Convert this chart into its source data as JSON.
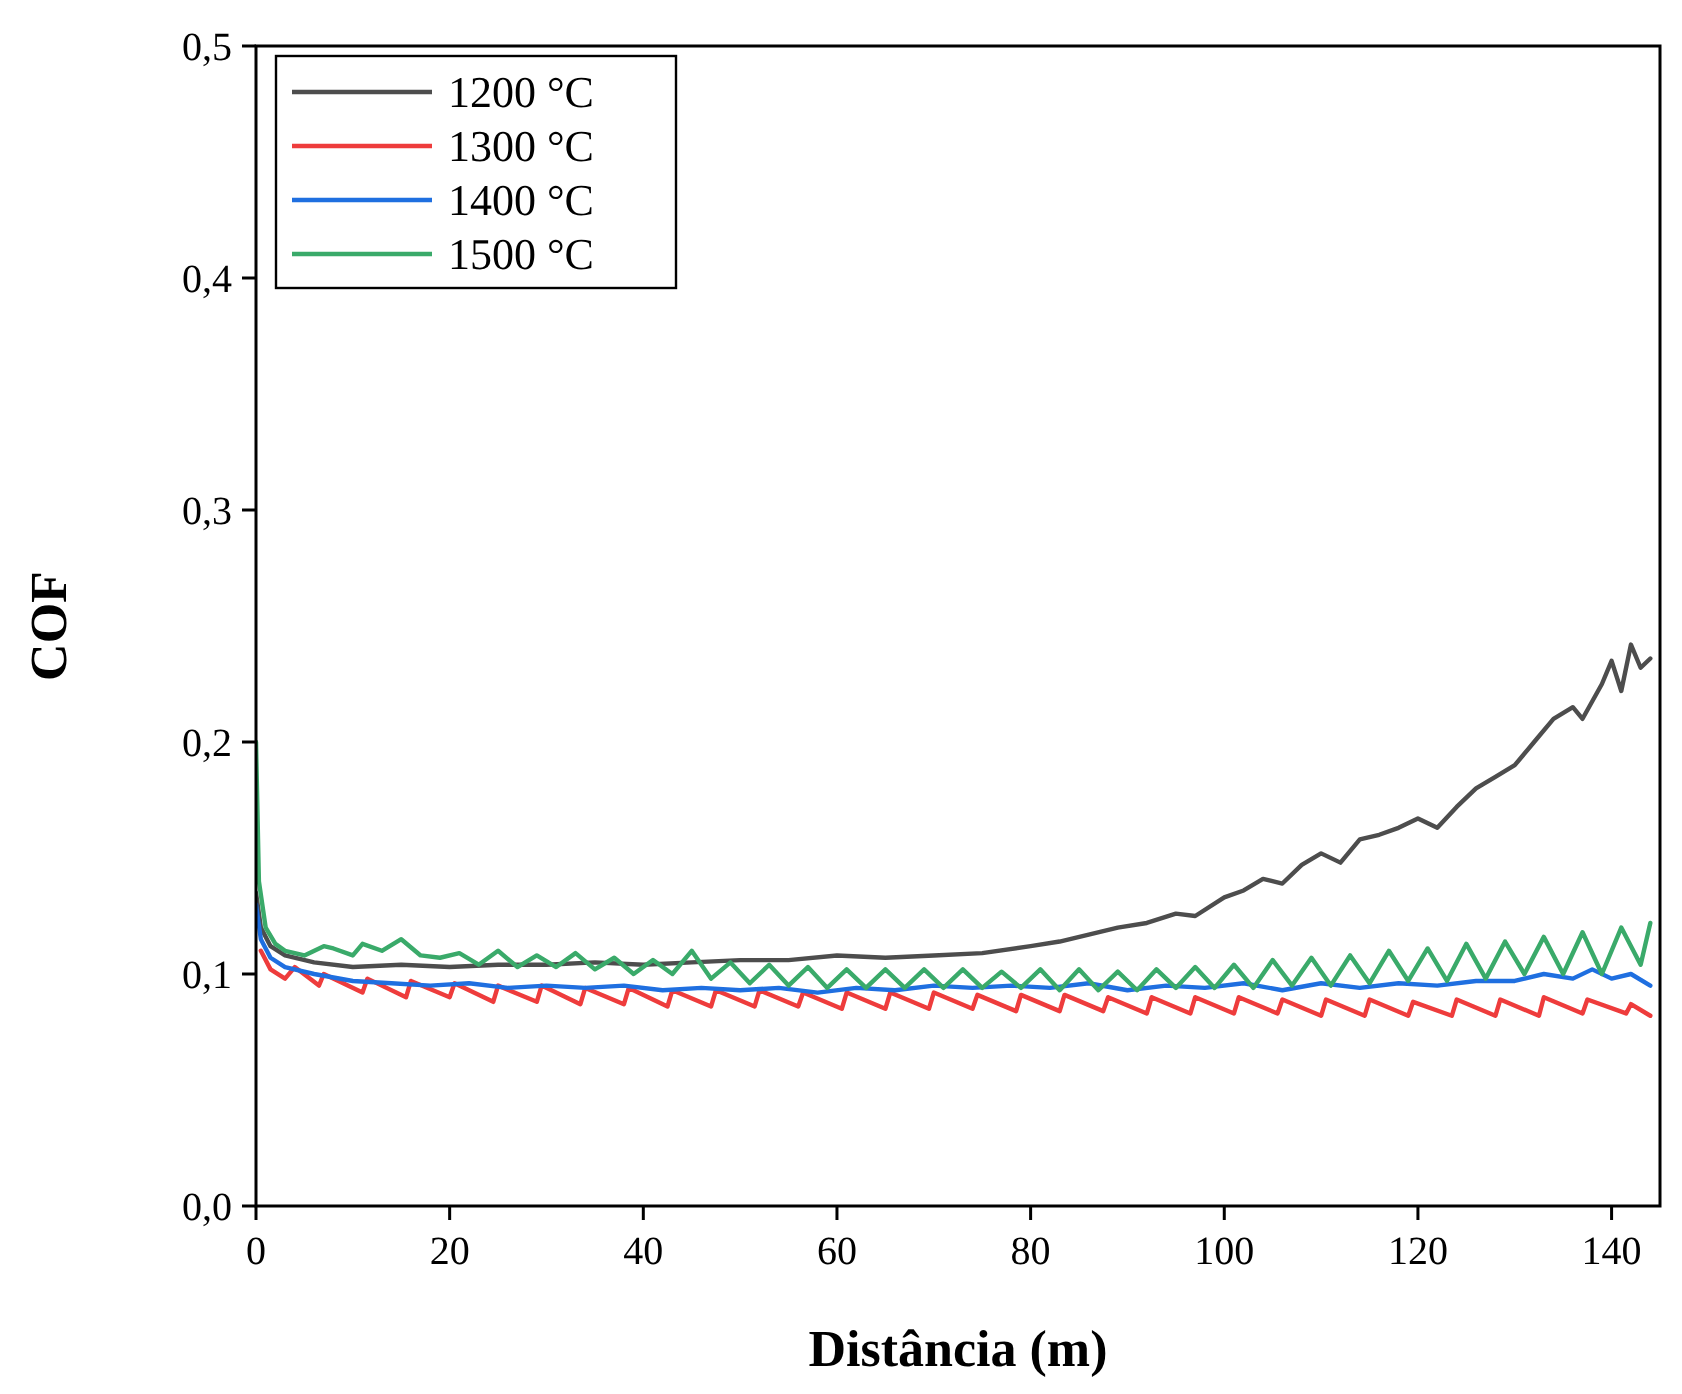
{
  "chart_data": {
    "type": "line",
    "xlabel": "Distância (m)",
    "ylabel": "COF",
    "xlim": [
      0,
      145
    ],
    "ylim": [
      0,
      0.5
    ],
    "xticks": [
      0,
      20,
      40,
      60,
      80,
      100,
      120,
      140
    ],
    "yticks": [
      {
        "value": 0,
        "label": "0,0"
      },
      {
        "value": 0.1,
        "label": "0,1"
      },
      {
        "value": 0.2,
        "label": "0,2"
      },
      {
        "value": 0.3,
        "label": "0,3"
      },
      {
        "value": 0.4,
        "label": "0,4"
      },
      {
        "value": 0.5,
        "label": "0,5"
      }
    ],
    "grid": false,
    "legend": "top left",
    "marker": "none",
    "line_style": "solid",
    "series": [
      {
        "name": "1200 °C",
        "color": "#4d4d4d",
        "x": [
          0,
          0.5,
          1.5,
          3,
          6,
          10,
          15,
          20,
          25,
          30,
          35,
          40,
          45,
          50,
          55,
          60,
          65,
          70,
          75,
          80,
          83,
          86,
          89,
          92,
          95,
          97,
          100,
          102,
          104,
          106,
          108,
          110,
          112,
          114,
          116,
          118,
          120,
          122,
          124,
          126,
          128,
          130,
          132,
          134,
          136,
          137,
          139,
          140,
          141,
          142,
          143,
          144
        ],
        "values": [
          0.135,
          0.12,
          0.112,
          0.108,
          0.105,
          0.103,
          0.104,
          0.103,
          0.104,
          0.104,
          0.105,
          0.104,
          0.105,
          0.106,
          0.106,
          0.108,
          0.107,
          0.108,
          0.109,
          0.112,
          0.114,
          0.117,
          0.12,
          0.122,
          0.126,
          0.125,
          0.133,
          0.136,
          0.141,
          0.139,
          0.147,
          0.152,
          0.148,
          0.158,
          0.16,
          0.163,
          0.167,
          0.163,
          0.172,
          0.18,
          0.185,
          0.19,
          0.2,
          0.21,
          0.215,
          0.21,
          0.225,
          0.235,
          0.222,
          0.242,
          0.232,
          0.236
        ]
      },
      {
        "name": "1300 °C",
        "color": "#ee3c3c",
        "x": [
          0.5,
          1.5,
          3,
          4,
          6.5,
          7,
          11,
          11.5,
          15.5,
          16,
          20,
          20.5,
          24.5,
          25,
          29,
          29.5,
          33.5,
          34,
          38,
          38.5,
          42.5,
          43,
          47,
          47.5,
          51.5,
          52,
          56,
          56.5,
          60.5,
          61,
          65,
          65.5,
          69.5,
          70,
          74,
          74.5,
          78.5,
          79,
          83,
          83.5,
          87.5,
          88,
          92,
          92.5,
          96.5,
          97,
          101,
          101.5,
          105.5,
          106,
          110,
          110.5,
          114.5,
          115,
          119,
          119.5,
          123.5,
          124,
          128,
          128.5,
          132.5,
          133,
          137,
          137.5,
          141.5,
          142,
          144
        ],
        "values": [
          0.11,
          0.102,
          0.098,
          0.103,
          0.095,
          0.1,
          0.092,
          0.098,
          0.09,
          0.097,
          0.09,
          0.096,
          0.088,
          0.095,
          0.088,
          0.095,
          0.087,
          0.094,
          0.087,
          0.094,
          0.086,
          0.093,
          0.086,
          0.093,
          0.086,
          0.093,
          0.086,
          0.092,
          0.085,
          0.092,
          0.085,
          0.092,
          0.085,
          0.092,
          0.085,
          0.091,
          0.084,
          0.091,
          0.084,
          0.091,
          0.084,
          0.09,
          0.083,
          0.09,
          0.083,
          0.09,
          0.083,
          0.09,
          0.083,
          0.089,
          0.082,
          0.089,
          0.082,
          0.089,
          0.082,
          0.088,
          0.082,
          0.089,
          0.082,
          0.089,
          0.082,
          0.09,
          0.083,
          0.089,
          0.083,
          0.087,
          0.082
        ]
      },
      {
        "name": "1400 °C",
        "color": "#1f6fe0",
        "x": [
          0,
          0.5,
          1.5,
          3,
          6,
          10,
          14,
          18,
          22,
          26,
          30,
          34,
          38,
          42,
          46,
          50,
          54,
          58,
          62,
          66,
          70,
          74,
          78,
          82,
          86,
          90,
          94,
          98,
          102,
          106,
          110,
          114,
          118,
          122,
          126,
          130,
          133,
          136,
          138,
          140,
          142,
          144
        ],
        "values": [
          0.13,
          0.115,
          0.107,
          0.103,
          0.1,
          0.097,
          0.096,
          0.095,
          0.096,
          0.094,
          0.095,
          0.094,
          0.095,
          0.093,
          0.094,
          0.093,
          0.094,
          0.092,
          0.094,
          0.093,
          0.095,
          0.094,
          0.095,
          0.094,
          0.096,
          0.093,
          0.095,
          0.094,
          0.096,
          0.093,
          0.096,
          0.094,
          0.096,
          0.095,
          0.097,
          0.097,
          0.1,
          0.098,
          0.102,
          0.098,
          0.1,
          0.095
        ]
      },
      {
        "name": "1500 °C",
        "color": "#3aaa6a",
        "x": [
          0,
          0.3,
          1,
          2,
          3,
          5,
          7,
          8,
          10,
          11,
          13,
          15,
          17,
          19,
          21,
          23,
          25,
          27,
          29,
          31,
          33,
          35,
          37,
          39,
          41,
          43,
          45,
          47,
          49,
          51,
          53,
          55,
          57,
          59,
          61,
          63,
          65,
          67,
          69,
          71,
          73,
          75,
          77,
          79,
          81,
          83,
          85,
          87,
          89,
          91,
          93,
          95,
          97,
          99,
          101,
          103,
          105,
          107,
          109,
          111,
          113,
          115,
          117,
          119,
          121,
          123,
          125,
          127,
          129,
          131,
          133,
          135,
          137,
          139,
          141,
          143,
          144
        ],
        "values": [
          0.2,
          0.14,
          0.12,
          0.113,
          0.11,
          0.108,
          0.112,
          0.111,
          0.108,
          0.113,
          0.11,
          0.115,
          0.108,
          0.107,
          0.109,
          0.104,
          0.11,
          0.103,
          0.108,
          0.103,
          0.109,
          0.102,
          0.107,
          0.1,
          0.106,
          0.1,
          0.11,
          0.098,
          0.105,
          0.096,
          0.104,
          0.095,
          0.103,
          0.094,
          0.102,
          0.094,
          0.102,
          0.094,
          0.102,
          0.094,
          0.102,
          0.094,
          0.101,
          0.094,
          0.102,
          0.093,
          0.102,
          0.093,
          0.101,
          0.093,
          0.102,
          0.094,
          0.103,
          0.094,
          0.104,
          0.094,
          0.106,
          0.095,
          0.107,
          0.095,
          0.108,
          0.096,
          0.11,
          0.097,
          0.111,
          0.097,
          0.113,
          0.098,
          0.114,
          0.1,
          0.116,
          0.1,
          0.118,
          0.1,
          0.12,
          0.104,
          0.122
        ]
      }
    ]
  }
}
